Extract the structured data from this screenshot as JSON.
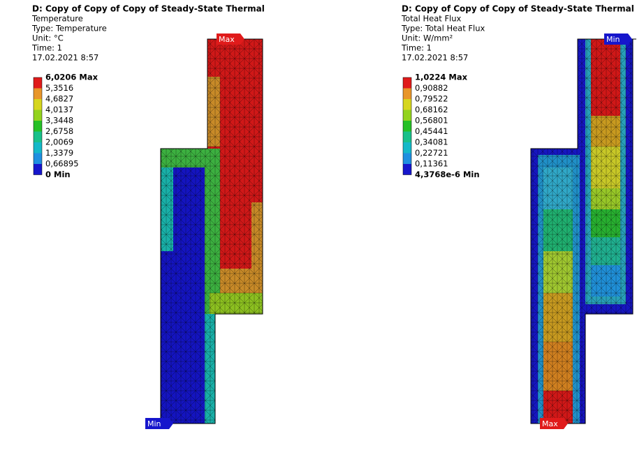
{
  "panels": [
    {
      "header": {
        "title": "D: Copy of Copy of Copy of Steady-State Thermal",
        "lines": [
          "Temperature",
          "Type: Temperature",
          "Unit: °C",
          "Time: 1",
          "17.02.2021 8:57"
        ]
      },
      "legend": {
        "labels": [
          "6,0206 Max",
          "5,3516",
          "4,6827",
          "4,0137",
          "3,3448",
          "2,6758",
          "2,0069",
          "1,3379",
          "0,66895",
          "0 Min"
        ],
        "colors": [
          "#e01b1b",
          "#e8962a",
          "#d6d61e",
          "#93d31d",
          "#26c026",
          "#19c08a",
          "#14b8c8",
          "#1f8fe0",
          "#1616cc"
        ]
      },
      "probes": [
        "Max",
        "Min"
      ]
    },
    {
      "header": {
        "title": "D: Copy of Copy of Copy of Steady-State Thermal",
        "lines": [
          "Total Heat Flux",
          "Type: Total Heat Flux",
          "Unit: W/mm²",
          "Time: 1",
          "17.02.2021 8:57"
        ]
      },
      "legend": {
        "labels": [
          "1,0224 Max",
          "0,90882",
          "0,79522",
          "0,68162",
          "0,56801",
          "0,45441",
          "0,34081",
          "0,22721",
          "0,11361",
          "4,3768e-6 Min"
        ],
        "colors": [
          "#e01b1b",
          "#e8962a",
          "#d6d61e",
          "#93d31d",
          "#26c026",
          "#19c08a",
          "#14b8c8",
          "#1f8fe0",
          "#1616cc"
        ]
      },
      "probes": [
        "Min",
        "Max"
      ]
    }
  ]
}
